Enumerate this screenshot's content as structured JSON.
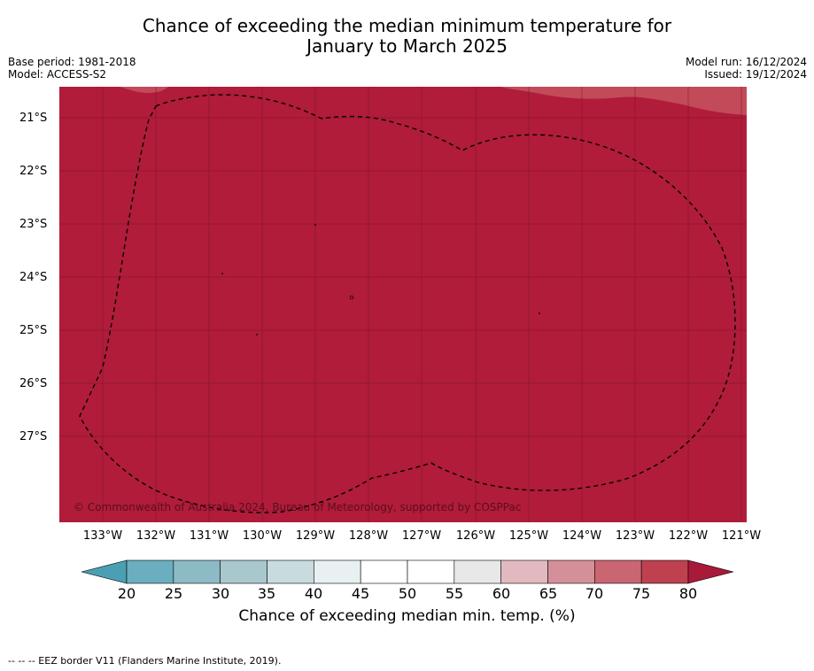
{
  "title_line1": "Chance of exceeding the median minimum temperature for",
  "title_line2": "January to March 2025",
  "meta": {
    "base_period": "Base period: 1981-2018",
    "model": "Model: ACCESS-S2",
    "model_run": "Model run: 16/12/2024",
    "issued": "Issued: 19/12/2024"
  },
  "map": {
    "dominant_color": "#b01c3a",
    "copyright": "© Commonwealth of Australia 2024, Bureau of Meteorology, supported by COSPPac",
    "lat_labels": [
      "21°S",
      "22°S",
      "23°S",
      "24°S",
      "25°S",
      "26°S",
      "27°S"
    ],
    "lon_labels": [
      "133°W",
      "132°W",
      "131°W",
      "130°W",
      "129°W",
      "128°W",
      "127°W",
      "126°W",
      "125°W",
      "124°W",
      "123°W",
      "122°W",
      "121°W"
    ]
  },
  "colorbar": {
    "title": "Chance of exceeding median min. temp. (%)",
    "ticks": [
      "20",
      "25",
      "30",
      "35",
      "40",
      "45",
      "50",
      "55",
      "60",
      "65",
      "70",
      "75",
      "80"
    ],
    "colors": [
      "#6aaebf",
      "#8cbac5",
      "#a8c8ce",
      "#c8dbdf",
      "#e8f0f2",
      "#ffffff",
      "#ffffff",
      "#e8e8e8",
      "#e2b9bf",
      "#d58f98",
      "#c96672",
      "#bf4150"
    ],
    "under_color": "#4aa0b2",
    "over_color": "#a8193a"
  },
  "footnote": "--  --  -- EEZ border V11 (Flanders Marine Institute, 2019)."
}
